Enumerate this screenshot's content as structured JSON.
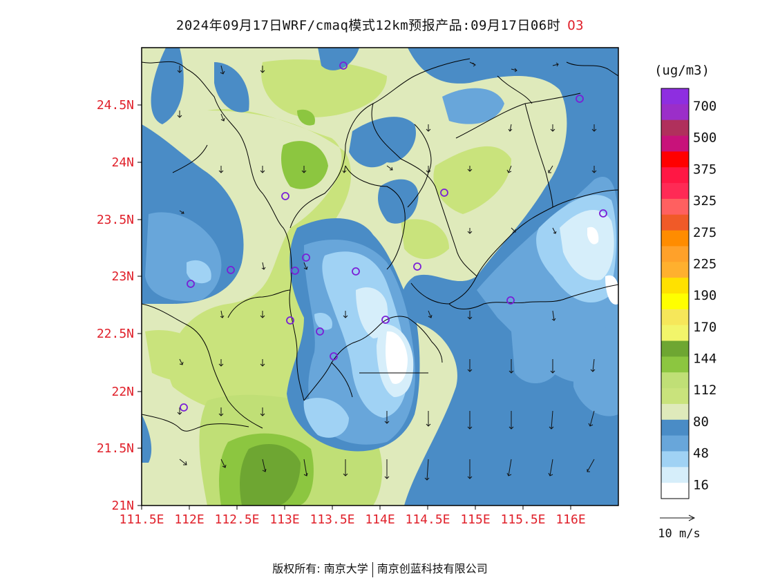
{
  "title": {
    "text": "2024年09月17日WRF/cmaq模式12km预报产品:09月17日06时",
    "species": "O3"
  },
  "map": {
    "lat_ticks": [
      "24.5N",
      "24N",
      "23.5N",
      "23N",
      "22.5N",
      "22N",
      "21.5N",
      "21N"
    ],
    "lon_ticks": [
      "111.5E",
      "112E",
      "112.5E",
      "113E",
      "113.5E",
      "114E",
      "114.5E",
      "115E",
      "115.5E",
      "116E"
    ],
    "extent": {
      "lon_min": 111.5,
      "lon_max": 116.5,
      "lat_min": 21.0,
      "lat_max": 25.0
    }
  },
  "colorbar": {
    "unit": "(ug/m3)",
    "labels": [
      "700",
      "500",
      "375",
      "325",
      "275",
      "225",
      "190",
      "170",
      "144",
      "112",
      "80",
      "48",
      "16"
    ],
    "colors": [
      "#8e2ee0",
      "#9b2ec9",
      "#b0305c",
      "#c8127a",
      "#ff0000",
      "#ff1744",
      "#ff2a55",
      "#ff6060",
      "#f05a28",
      "#ff8c00",
      "#ffa12a",
      "#ffb02e",
      "#ffe100",
      "#ffff00",
      "#f6e75a",
      "#f2f56a",
      "#6ea632",
      "#8cc640",
      "#c0df76",
      "#c9e37c",
      "#dfeabb",
      "#4a8cc6",
      "#68a6da",
      "#a0d2f4",
      "#d6eefa",
      "#ffffff"
    ]
  },
  "wind_legend": {
    "label": "10 m/s"
  },
  "footer": {
    "left": "版权所有: 南京大学",
    "right": "南京创蓝科技有限公司"
  }
}
